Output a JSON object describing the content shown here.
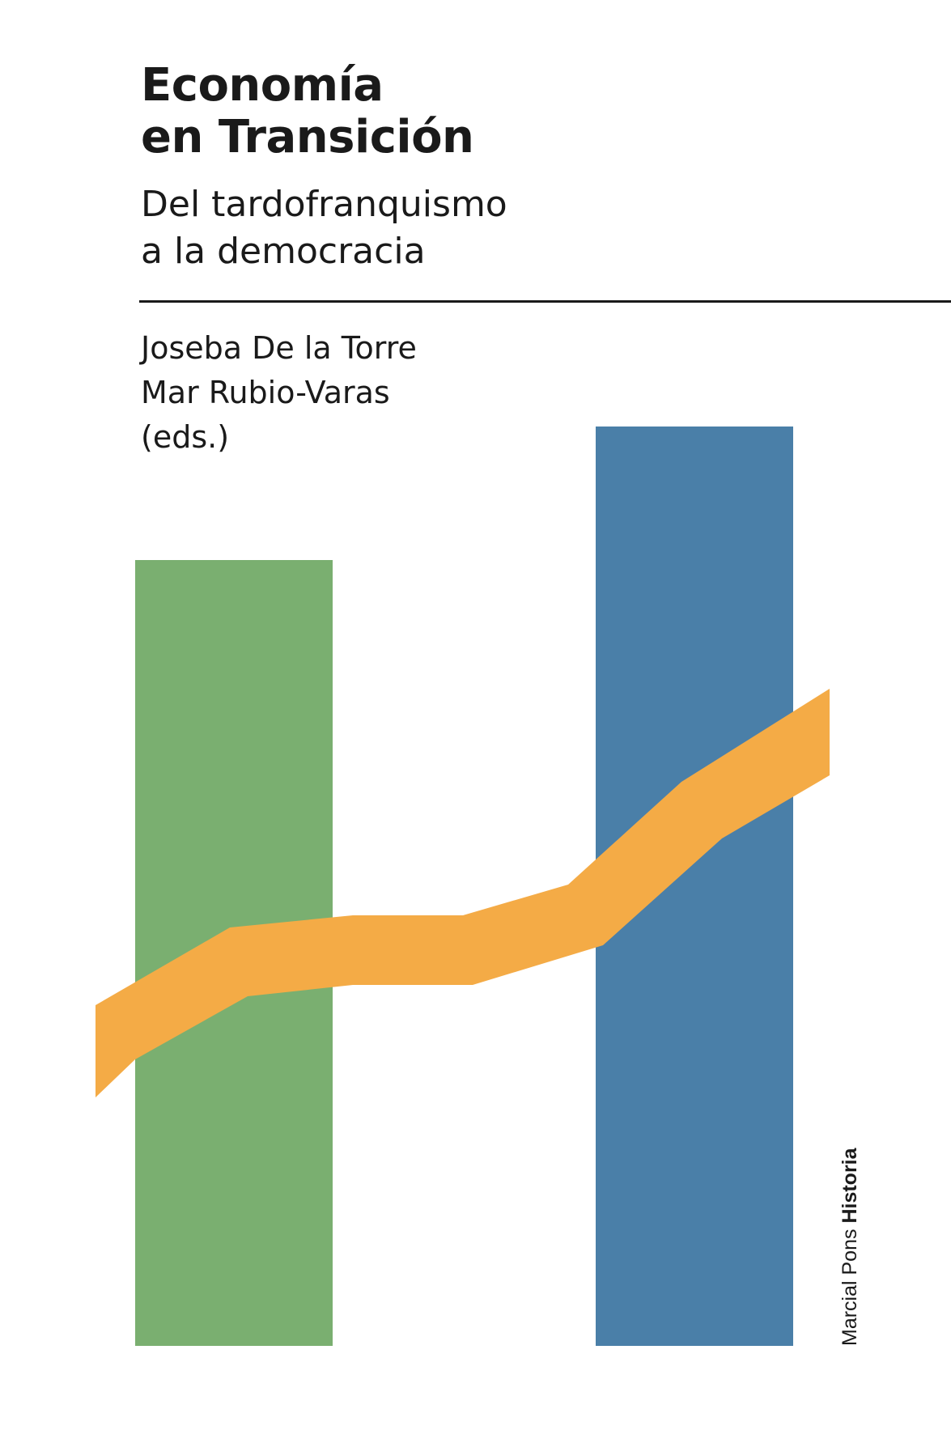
{
  "cover": {
    "title_line1": "Economía",
    "title_line2": "en Transición",
    "subtitle_line1": "Del tardofranquismo",
    "subtitle_line2": "a la democracia",
    "author1": "Joseba De la Torre",
    "author2": "Mar Rubio-Varas",
    "editors_note": "(eds.)",
    "publisher_name": "Marcial Pons",
    "series_name": "Historia"
  },
  "colors": {
    "green_bar": "#7aaf70",
    "blue_bar": "#4a7fa8",
    "orange_band": "#f4ab46",
    "text": "#1a1a1a"
  }
}
